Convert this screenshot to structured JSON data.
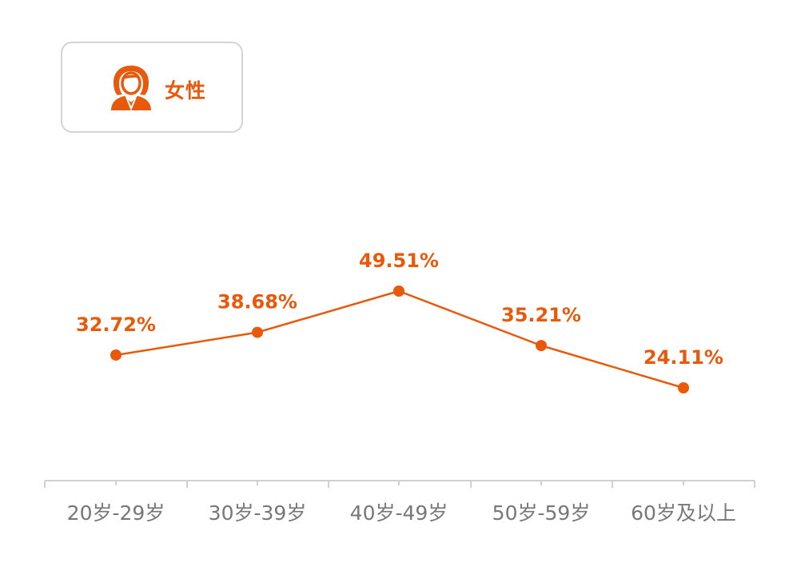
{
  "badge": {
    "label": "女性",
    "icon": "female-user-icon"
  },
  "colors": {
    "accent": "#e8590c",
    "axis": "#d0d0d0",
    "tick_text": "#777777"
  },
  "chart_data": {
    "type": "line",
    "categories": [
      "20岁-29岁",
      "30岁-39岁",
      "40岁-49岁",
      "50岁-59岁",
      "60岁及以上"
    ],
    "series": [
      {
        "values": [
          32.72,
          38.68,
          49.51,
          35.21,
          24.11
        ]
      }
    ],
    "data_labels": [
      "32.72%",
      "38.68%",
      "49.51%",
      "35.21%",
      "24.11%"
    ],
    "title": "",
    "xlabel": "",
    "ylabel": "",
    "unit": "%",
    "grid": false,
    "legend": "none"
  }
}
